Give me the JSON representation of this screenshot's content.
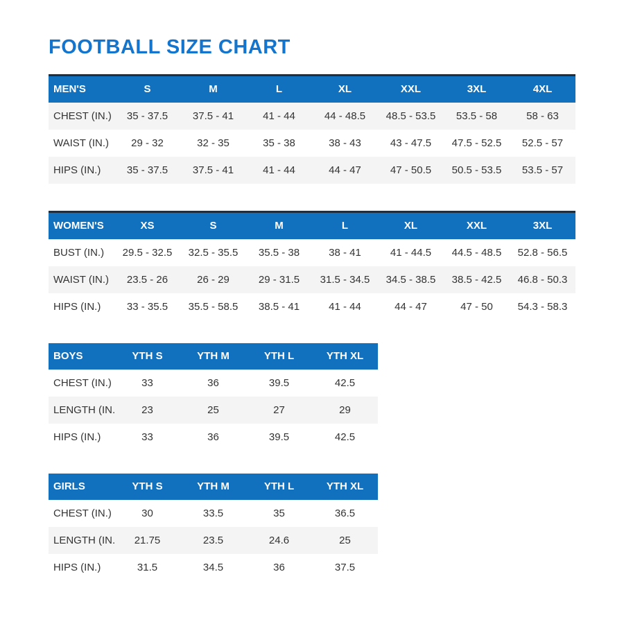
{
  "title": "FOOTBALL SIZE CHART",
  "colors": {
    "title_blue": "#1375CD",
    "header_blue": "#1171BF",
    "header_text": "#FFFFFF",
    "stripe_gray": "#F4F4F5",
    "top_border_dark": "#1F2D3D",
    "body_text": "#333333"
  },
  "tables": [
    {
      "name": "MEN'S",
      "sizes": [
        "S",
        "M",
        "L",
        "XL",
        "XXL",
        "3XL",
        "4XL"
      ],
      "rows": [
        {
          "label": "CHEST (IN.)",
          "values": [
            "35 - 37.5",
            "37.5 - 41",
            "41 - 44",
            "44 - 48.5",
            "48.5 - 53.5",
            "53.5 - 58",
            "58 - 63"
          ]
        },
        {
          "label": "WAIST (IN.)",
          "values": [
            "29 - 32",
            "32 - 35",
            "35 - 38",
            "38 - 43",
            "43 - 47.5",
            "47.5 - 52.5",
            "52.5 - 57"
          ]
        },
        {
          "label": "HIPS (IN.)",
          "values": [
            "35 - 37.5",
            "37.5 - 41",
            "41 - 44",
            "44 - 47",
            "47 - 50.5",
            "50.5 - 53.5",
            "53.5 - 57"
          ]
        }
      ]
    },
    {
      "name": "WOMEN'S",
      "sizes": [
        "XS",
        "S",
        "M",
        "L",
        "XL",
        "XXL",
        "3XL"
      ],
      "rows": [
        {
          "label": "BUST (IN.)",
          "values": [
            "29.5 - 32.5",
            "32.5 - 35.5",
            "35.5 - 38",
            "38 - 41",
            "41 - 44.5",
            "44.5 - 48.5",
            "52.8 - 56.5"
          ]
        },
        {
          "label": "WAIST (IN.)",
          "values": [
            "23.5 - 26",
            "26 - 29",
            "29 - 31.5",
            "31.5 - 34.5",
            "34.5 - 38.5",
            "38.5 - 42.5",
            "46.8 - 50.3"
          ]
        },
        {
          "label": "HIPS (IN.)",
          "values": [
            "33 - 35.5",
            "35.5 - 58.5",
            "38.5 - 41",
            "41 - 44",
            "44 - 47",
            "47 - 50",
            "54.3 - 58.3"
          ]
        }
      ]
    },
    {
      "name": "BOYS",
      "sizes": [
        "YTH S",
        "YTH M",
        "YTH L",
        "YTH XL"
      ],
      "rows": [
        {
          "label": "CHEST (IN.)",
          "values": [
            "33",
            "36",
            "39.5",
            "42.5"
          ]
        },
        {
          "label": "LENGTH (IN.)",
          "values": [
            "23",
            "25",
            "27",
            "29"
          ]
        },
        {
          "label": "HIPS (IN.)",
          "values": [
            "33",
            "36",
            "39.5",
            "42.5"
          ]
        }
      ]
    },
    {
      "name": "GIRLS",
      "sizes": [
        "YTH S",
        "YTH M",
        "YTH L",
        "YTH XL"
      ],
      "rows": [
        {
          "label": "CHEST (IN.)",
          "values": [
            "30",
            "33.5",
            "35",
            "36.5"
          ]
        },
        {
          "label": "LENGTH (IN.)",
          "values": [
            "21.75",
            "23.5",
            "24.6",
            "25"
          ]
        },
        {
          "label": "HIPS (IN.)",
          "values": [
            "31.5",
            "34.5",
            "36",
            "37.5"
          ]
        }
      ]
    }
  ]
}
